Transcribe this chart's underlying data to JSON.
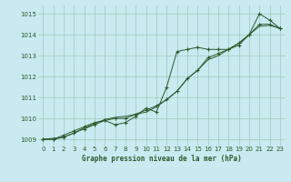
{
  "bg_color": "#c8eaf0",
  "grid_color": "#a0c8b8",
  "line_color": "#2d5a2d",
  "xlabel": "Graphe pression niveau de la mer (hPa)",
  "xlim": [
    -0.5,
    23.5
  ],
  "ylim": [
    1008.7,
    1015.4
  ],
  "yticks": [
    1009,
    1010,
    1011,
    1012,
    1013,
    1014,
    1015
  ],
  "xticks": [
    0,
    1,
    2,
    3,
    4,
    5,
    6,
    7,
    8,
    9,
    10,
    11,
    12,
    13,
    14,
    15,
    16,
    17,
    18,
    19,
    20,
    21,
    22,
    23
  ],
  "line1_x": [
    0,
    1,
    2,
    3,
    4,
    5,
    6,
    7,
    8,
    9,
    10,
    11,
    12,
    13,
    14,
    15,
    16,
    17,
    18,
    19,
    20,
    21,
    22,
    23
  ],
  "line1_y": [
    1009.0,
    1009.0,
    1009.2,
    1009.4,
    1009.6,
    1009.8,
    1009.9,
    1009.7,
    1009.8,
    1010.1,
    1010.5,
    1010.3,
    1011.5,
    1013.2,
    1013.3,
    1013.4,
    1013.3,
    1013.3,
    1013.3,
    1013.5,
    1014.0,
    1015.0,
    1014.7,
    1014.3
  ],
  "line2_x": [
    0,
    1,
    2,
    3,
    4,
    5,
    6,
    7,
    8,
    9,
    10,
    11,
    12,
    13,
    14,
    15,
    16,
    17,
    18,
    19,
    20,
    21,
    22,
    23
  ],
  "line2_y": [
    1009.0,
    1009.0,
    1009.1,
    1009.3,
    1009.5,
    1009.7,
    1009.9,
    1010.0,
    1010.0,
    1010.2,
    1010.4,
    1010.6,
    1010.9,
    1011.3,
    1011.9,
    1012.3,
    1012.9,
    1013.1,
    1013.3,
    1013.6,
    1014.0,
    1014.5,
    1014.5,
    1014.3
  ],
  "line3_x": [
    0,
    1,
    2,
    3,
    4,
    5,
    6,
    7,
    8,
    9,
    10,
    11,
    12,
    13,
    14,
    15,
    16,
    17,
    18,
    19,
    20,
    21,
    22,
    23
  ],
  "line3_y": [
    1009.0,
    1009.05,
    1009.1,
    1009.3,
    1009.55,
    1009.75,
    1009.95,
    1010.05,
    1010.1,
    1010.2,
    1010.3,
    1010.55,
    1010.9,
    1011.3,
    1011.9,
    1012.3,
    1012.8,
    1013.0,
    1013.3,
    1013.6,
    1014.0,
    1014.4,
    1014.45,
    1014.3
  ]
}
